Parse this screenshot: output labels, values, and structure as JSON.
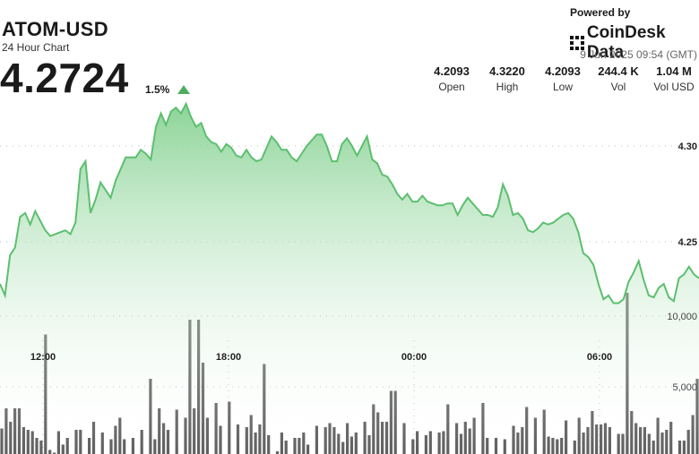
{
  "header": {
    "title": "ATOM-USD",
    "subtitle": "24 Hour Chart",
    "price": "4.2724",
    "change": "1.5%"
  },
  "branding": {
    "powered_by": "Powered by",
    "name": "CoinDesk Data",
    "date": "9 Jun 2025 09:54 (GMT)"
  },
  "stats": [
    {
      "value": "4.2093",
      "label": "Open"
    },
    {
      "value": "4.3220",
      "label": "High"
    },
    {
      "value": "4.2093",
      "label": "Low"
    },
    {
      "value": "244.4 K",
      "label": "Vol"
    },
    {
      "value": "1.04 M",
      "label": "Vol USD"
    }
  ],
  "colors": {
    "line": "#5cbf6f",
    "fill_top": "#7fcf8c",
    "bar": "#444444",
    "up": "#4caf5f"
  },
  "chart_data": {
    "type": "area",
    "x_tick_labels": [
      "12:00",
      "18:00",
      "00:00",
      "06:00"
    ],
    "y_tick_labels": [
      "4.30",
      "4.25"
    ],
    "volume_tick_labels": [
      "10,000",
      "5,000"
    ],
    "ylim": [
      4.205,
      4.335
    ],
    "volume_max": 13000,
    "grid": true,
    "price": [
      4.228,
      4.222,
      4.243,
      4.247,
      4.263,
      4.265,
      4.259,
      4.266,
      4.261,
      4.256,
      4.253,
      4.254,
      4.255,
      4.256,
      4.254,
      4.26,
      4.288,
      4.292,
      4.265,
      4.272,
      4.281,
      4.277,
      4.273,
      4.282,
      4.288,
      4.294,
      4.294,
      4.294,
      4.298,
      4.296,
      4.293,
      4.31,
      4.317,
      4.311,
      4.318,
      4.32,
      4.317,
      4.322,
      4.315,
      4.31,
      4.312,
      4.305,
      4.302,
      4.301,
      4.297,
      4.301,
      4.299,
      4.295,
      4.294,
      4.298,
      4.294,
      4.292,
      4.293,
      4.299,
      4.305,
      4.302,
      4.298,
      4.298,
      4.294,
      4.292,
      4.296,
      4.3,
      4.303,
      4.306,
      4.306,
      4.3,
      4.292,
      4.292,
      4.301,
      4.304,
      4.3,
      4.295,
      4.3,
      4.305,
      4.293,
      4.291,
      4.285,
      4.284,
      4.28,
      4.275,
      4.272,
      4.275,
      4.271,
      4.271,
      4.274,
      4.271,
      4.27,
      4.269,
      4.269,
      4.27,
      4.27,
      4.264,
      4.269,
      4.273,
      4.27,
      4.267,
      4.264,
      4.264,
      4.263,
      4.268,
      4.28,
      4.274,
      4.264,
      4.265,
      4.262,
      4.256,
      4.255,
      4.257,
      4.26,
      4.259,
      4.26,
      4.262,
      4.264,
      4.265,
      4.262,
      4.255,
      4.244,
      4.242,
      4.238,
      4.228,
      4.22,
      4.222,
      4.218,
      4.218,
      4.22,
      4.229,
      4.234,
      4.24,
      4.23,
      4.222,
      4.221,
      4.226,
      4.228,
      4.221,
      4.219,
      4.231,
      4.233,
      4.237,
      4.233,
      4.231
    ],
    "volume": [
      1900,
      3400,
      2400,
      3400,
      3400,
      2000,
      1800,
      1700,
      1200,
      1000,
      8900,
      300,
      100,
      1700,
      700,
      1200,
      0,
      1800,
      1800,
      0,
      1200,
      2400,
      0,
      1600,
      0,
      1100,
      2100,
      2700,
      1100,
      0,
      1200,
      0,
      1800,
      0,
      5600,
      1100,
      3400,
      2300,
      1800,
      0,
      3300,
      0,
      2700,
      10000,
      3400,
      10000,
      6800,
      2700,
      0,
      3800,
      2100,
      0,
      3900,
      0,
      2200,
      0,
      2000,
      2900,
      1600,
      2200,
      6700,
      1400,
      0,
      200,
      1600,
      1000,
      0,
      1200,
      1200,
      1600,
      700,
      0,
      2100,
      0,
      2000,
      2300,
      2000,
      1500,
      900,
      2300,
      1300,
      1600,
      0,
      2400,
      1400,
      3700,
      3100,
      2400,
      2400,
      4700,
      4700,
      0,
      2300,
      0,
      1100,
      1700,
      0,
      1400,
      1700,
      0,
      1600,
      1700,
      3700,
      0,
      2300,
      1500,
      2400,
      1900,
      2700,
      0,
      3800,
      1200,
      0,
      1200,
      0,
      1100,
      0,
      2100,
      1600,
      2000,
      3500,
      0,
      2700,
      0,
      3300,
      1300,
      1200,
      1100,
      1200,
      2500,
      0,
      1000,
      2700,
      1600,
      2000,
      3200,
      2200,
      2200,
      2300,
      2000,
      0,
      1500,
      1500,
      12000,
      3200,
      2300,
      2000,
      2000,
      1500,
      1000,
      2700,
      1600,
      1800,
      2400,
      0,
      1000,
      1000,
      1800,
      2900,
      5600
    ]
  }
}
